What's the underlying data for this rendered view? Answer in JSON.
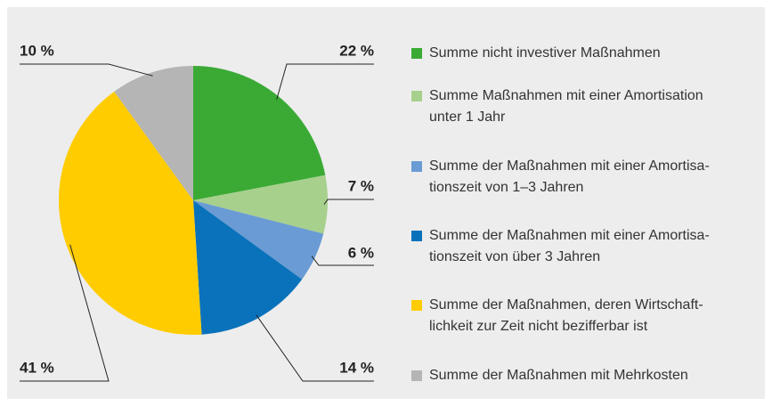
{
  "chart_data": {
    "type": "pie",
    "categories": [
      "Summe nicht investiver Maßnahmen",
      "Summe Maßnahmen mit einer Amortisation unter 1 Jahr",
      "Summe der Maßnahmen mit einer Amortisa­tionszeit von 1–3 Jahren",
      "Summe der Maßnahmen mit einer Amortisa­tionszeit von über 3 Jahren",
      "Summe der Maßnahmen, deren Wirtschaft­lichkeit zur Zeit nicht bezifferbar ist",
      "Summe der Maßnahmen mit Mehrkosten"
    ],
    "values": [
      22,
      7,
      6,
      14,
      41,
      10
    ],
    "value_labels": [
      "22 %",
      "7 %",
      "6 %",
      "14 %",
      "41 %",
      "10 %"
    ],
    "colors": [
      "#3aaa35",
      "#a8d08d",
      "#6a9bd4",
      "#0a72bb",
      "#ffcc00",
      "#b5b5b5"
    ]
  }
}
